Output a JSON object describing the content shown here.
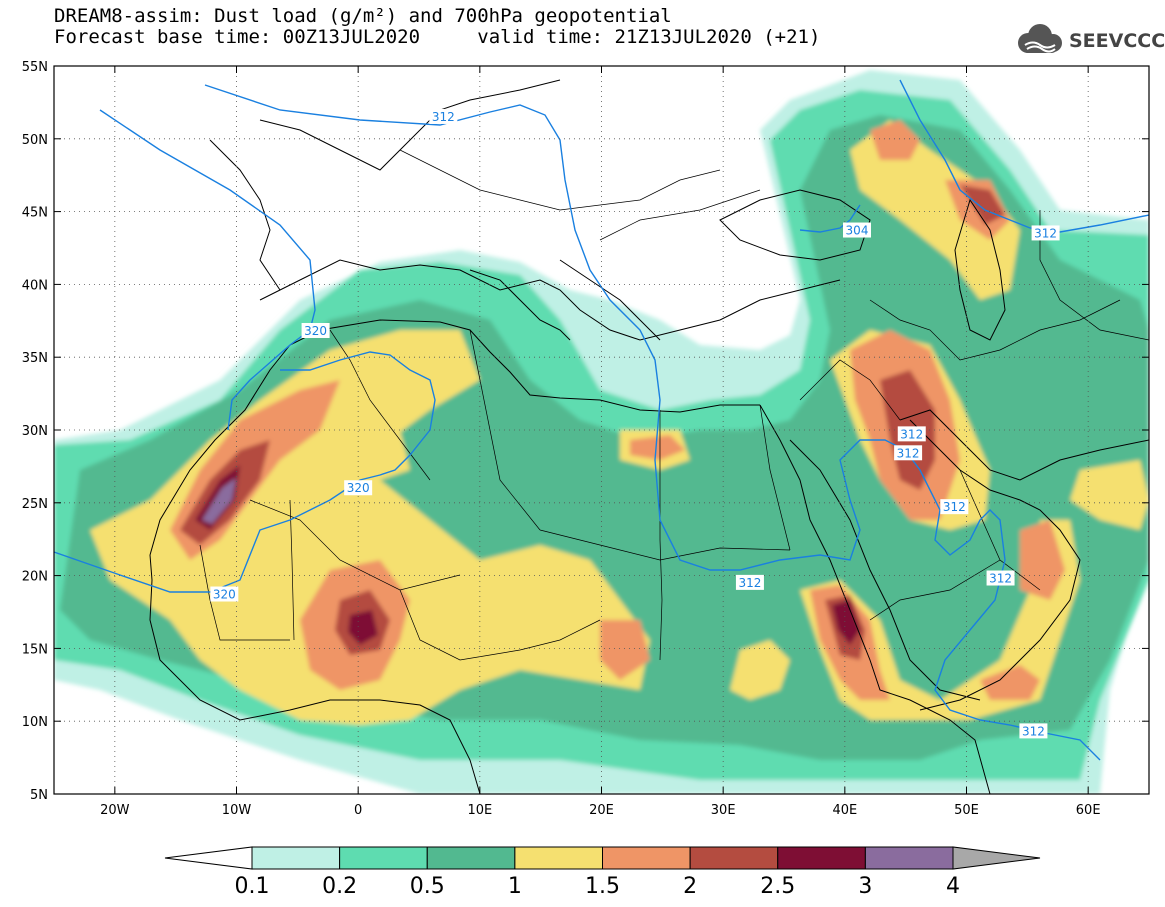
{
  "header": {
    "line1": "DREAM8-assim: Dust load (g/m²) and 700hPa geopotential",
    "line2_base": "Forecast base time: 00Z13JUL2020",
    "line2_valid": "valid time: 21Z13JUL2020 (+21)"
  },
  "logo": {
    "text": "SEEVCCC",
    "icon": "cloud-logo-icon"
  },
  "map": {
    "lon_range": [
      -25,
      65
    ],
    "lat_range": [
      5,
      55
    ],
    "lon_ticks": [
      {
        "value": -20,
        "label": "20W"
      },
      {
        "value": -10,
        "label": "10W"
      },
      {
        "value": 0,
        "label": "0"
      },
      {
        "value": 10,
        "label": "10E"
      },
      {
        "value": 20,
        "label": "20E"
      },
      {
        "value": 30,
        "label": "30E"
      },
      {
        "value": 40,
        "label": "40E"
      },
      {
        "value": 50,
        "label": "50E"
      },
      {
        "value": 60,
        "label": "60E"
      }
    ],
    "lat_ticks": [
      {
        "value": 55,
        "label": "55N"
      },
      {
        "value": 50,
        "label": "50N"
      },
      {
        "value": 45,
        "label": "45N"
      },
      {
        "value": 40,
        "label": "40N"
      },
      {
        "value": 35,
        "label": "35N"
      },
      {
        "value": 30,
        "label": "30N"
      },
      {
        "value": 25,
        "label": "25N"
      },
      {
        "value": 20,
        "label": "20N"
      },
      {
        "value": 15,
        "label": "15N"
      },
      {
        "value": 10,
        "label": "10N"
      },
      {
        "value": 5,
        "label": "5N"
      }
    ],
    "contour_labels": [
      {
        "text": "312",
        "lon": 7,
        "lat": 51.5
      },
      {
        "text": "320",
        "lon": -3.5,
        "lat": 36.8
      },
      {
        "text": "320",
        "lon": 0,
        "lat": 26
      },
      {
        "text": "320",
        "lon": -11,
        "lat": 18.7
      },
      {
        "text": "304",
        "lon": 41,
        "lat": 43.7
      },
      {
        "text": "312",
        "lon": 56.5,
        "lat": 43.5
      },
      {
        "text": "312",
        "lon": 45.5,
        "lat": 29.7
      },
      {
        "text": "312",
        "lon": 45.2,
        "lat": 28.4
      },
      {
        "text": "312",
        "lon": 49,
        "lat": 24.7
      },
      {
        "text": "312",
        "lon": 32.2,
        "lat": 19.5
      },
      {
        "text": "312",
        "lon": 52.8,
        "lat": 19.8
      },
      {
        "text": "312",
        "lon": 55.5,
        "lat": 9.3
      }
    ]
  },
  "colorbar": {
    "levels": [
      "0.1",
      "0.2",
      "0.5",
      "1",
      "1.5",
      "2",
      "2.5",
      "3",
      "4"
    ],
    "colors": [
      "#bff0e5",
      "#5edcb0",
      "#52b990",
      "#f5e070",
      "#ef9566",
      "#b44c40",
      "#7e0e34",
      "#8a6c9e"
    ],
    "under_color": "#ffffff",
    "over_color": "#a8a8a8"
  },
  "colors": {
    "contour": "#1a80e0",
    "coast": "#000000",
    "grid": "#555555"
  }
}
